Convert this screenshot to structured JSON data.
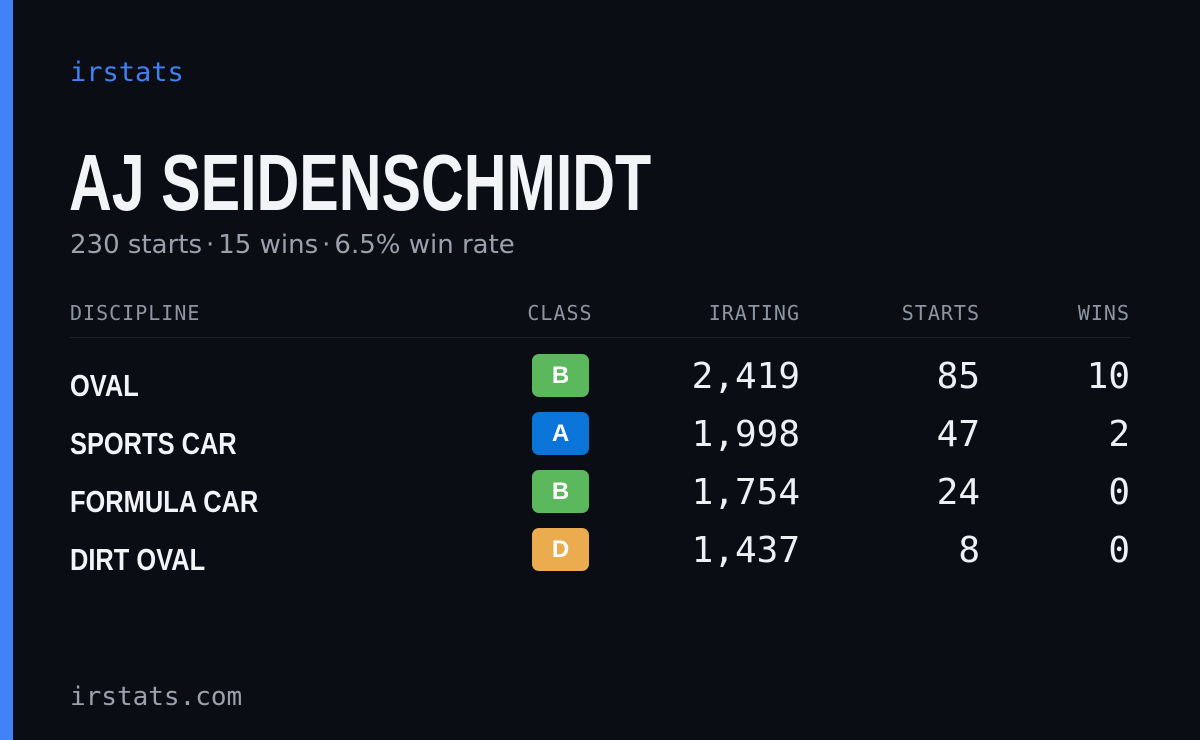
{
  "theme": {
    "accent": "#3f82f6",
    "background": "#0a0d14"
  },
  "brand": "irstats",
  "driver": {
    "name": "AJ SEIDENSCHMIDT",
    "summary": {
      "starts": "230 starts",
      "wins": "15 wins",
      "win_rate": "6.5% win rate",
      "separator": "·"
    }
  },
  "table": {
    "headers": {
      "discipline": "DISCIPLINE",
      "class": "CLASS",
      "irating": "IRATING",
      "starts": "STARTS",
      "wins": "WINS"
    },
    "rows": [
      {
        "discipline": "OVAL",
        "class": "B",
        "class_color": "#5cb85c",
        "irating": "2,419",
        "starts": "85",
        "wins": "10"
      },
      {
        "discipline": "SPORTS CAR",
        "class": "A",
        "class_color": "#0b74d9",
        "irating": "1,998",
        "starts": "47",
        "wins": "2"
      },
      {
        "discipline": "FORMULA CAR",
        "class": "B",
        "class_color": "#5cb85c",
        "irating": "1,754",
        "starts": "24",
        "wins": "0"
      },
      {
        "discipline": "DIRT OVAL",
        "class": "D",
        "class_color": "#eaac4e",
        "irating": "1,437",
        "starts": "8",
        "wins": "0"
      }
    ]
  },
  "footer": {
    "site": "irstats.com"
  }
}
